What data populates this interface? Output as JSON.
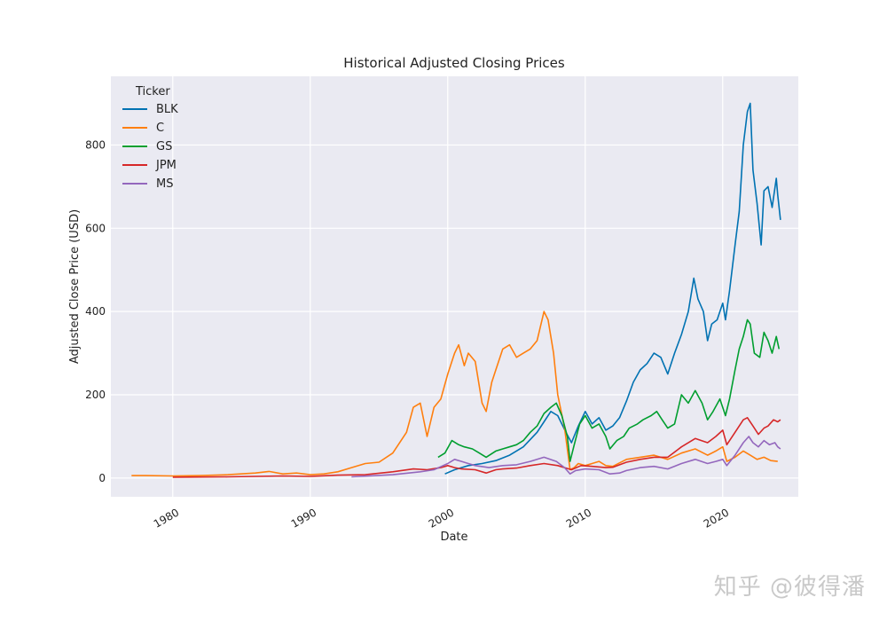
{
  "watermark": "知乎 @彼得潘",
  "chart_data": {
    "type": "line",
    "title": "Historical Adjusted Closing Prices",
    "xlabel": "Date",
    "ylabel": "Adjusted Close Price (USD)",
    "xlim": [
      1975.5,
      2025.5
    ],
    "ylim": [
      -45,
      965
    ],
    "xticks": [
      1980,
      1990,
      2000,
      2010,
      2020
    ],
    "yticks": [
      0,
      200,
      400,
      600,
      800
    ],
    "grid": true,
    "legend": {
      "title": "Ticker",
      "position": "top-left"
    },
    "series": [
      {
        "name": "BLK",
        "color": "#0072b2",
        "points": [
          [
            1999.8,
            10
          ],
          [
            2000.5,
            20
          ],
          [
            2001.5,
            30
          ],
          [
            2002.5,
            35
          ],
          [
            2003.5,
            42
          ],
          [
            2004.5,
            55
          ],
          [
            2005.5,
            75
          ],
          [
            2006.5,
            110
          ],
          [
            2007.0,
            135
          ],
          [
            2007.5,
            160
          ],
          [
            2008.0,
            150
          ],
          [
            2008.6,
            110
          ],
          [
            2009.0,
            85
          ],
          [
            2009.5,
            125
          ],
          [
            2010.0,
            160
          ],
          [
            2010.5,
            130
          ],
          [
            2011.0,
            145
          ],
          [
            2011.5,
            115
          ],
          [
            2012.0,
            125
          ],
          [
            2012.5,
            145
          ],
          [
            2013.0,
            185
          ],
          [
            2013.5,
            230
          ],
          [
            2014.0,
            260
          ],
          [
            2014.5,
            275
          ],
          [
            2015.0,
            300
          ],
          [
            2015.5,
            290
          ],
          [
            2016.0,
            250
          ],
          [
            2016.5,
            300
          ],
          [
            2017.0,
            345
          ],
          [
            2017.5,
            400
          ],
          [
            2017.9,
            480
          ],
          [
            2018.2,
            430
          ],
          [
            2018.6,
            400
          ],
          [
            2018.9,
            330
          ],
          [
            2019.2,
            370
          ],
          [
            2019.6,
            380
          ],
          [
            2020.0,
            420
          ],
          [
            2020.2,
            380
          ],
          [
            2020.5,
            450
          ],
          [
            2020.9,
            560
          ],
          [
            2021.2,
            640
          ],
          [
            2021.5,
            800
          ],
          [
            2021.8,
            880
          ],
          [
            2022.0,
            900
          ],
          [
            2022.2,
            740
          ],
          [
            2022.5,
            660
          ],
          [
            2022.8,
            560
          ],
          [
            2023.0,
            690
          ],
          [
            2023.3,
            700
          ],
          [
            2023.6,
            650
          ],
          [
            2023.9,
            720
          ],
          [
            2024.0,
            680
          ],
          [
            2024.2,
            620
          ]
        ]
      },
      {
        "name": "C",
        "color": "#ff7f0e",
        "points": [
          [
            1977.0,
            6
          ],
          [
            1978.0,
            6
          ],
          [
            1980.0,
            5
          ],
          [
            1982.0,
            6
          ],
          [
            1984.0,
            8
          ],
          [
            1986.0,
            12
          ],
          [
            1987.0,
            16
          ],
          [
            1988.0,
            10
          ],
          [
            1989.0,
            12
          ],
          [
            1990.0,
            8
          ],
          [
            1991.0,
            10
          ],
          [
            1992.0,
            15
          ],
          [
            1993.0,
            25
          ],
          [
            1994.0,
            35
          ],
          [
            1995.0,
            38
          ],
          [
            1996.0,
            60
          ],
          [
            1997.0,
            110
          ],
          [
            1997.5,
            170
          ],
          [
            1998.0,
            180
          ],
          [
            1998.5,
            100
          ],
          [
            1999.0,
            170
          ],
          [
            1999.5,
            190
          ],
          [
            2000.0,
            250
          ],
          [
            2000.5,
            300
          ],
          [
            2000.8,
            320
          ],
          [
            2001.2,
            270
          ],
          [
            2001.5,
            300
          ],
          [
            2002.0,
            280
          ],
          [
            2002.5,
            180
          ],
          [
            2002.8,
            160
          ],
          [
            2003.2,
            230
          ],
          [
            2003.5,
            260
          ],
          [
            2004.0,
            310
          ],
          [
            2004.5,
            320
          ],
          [
            2005.0,
            290
          ],
          [
            2005.5,
            300
          ],
          [
            2006.0,
            310
          ],
          [
            2006.5,
            330
          ],
          [
            2007.0,
            400
          ],
          [
            2007.3,
            380
          ],
          [
            2007.7,
            300
          ],
          [
            2008.0,
            200
          ],
          [
            2008.5,
            120
          ],
          [
            2008.9,
            20
          ],
          [
            2009.2,
            25
          ],
          [
            2009.5,
            35
          ],
          [
            2010.0,
            30
          ],
          [
            2010.5,
            35
          ],
          [
            2011.0,
            40
          ],
          [
            2011.5,
            30
          ],
          [
            2012.0,
            28
          ],
          [
            2013.0,
            45
          ],
          [
            2014.0,
            50
          ],
          [
            2015.0,
            55
          ],
          [
            2016.0,
            45
          ],
          [
            2017.0,
            60
          ],
          [
            2018.0,
            70
          ],
          [
            2018.9,
            55
          ],
          [
            2019.5,
            65
          ],
          [
            2020.0,
            75
          ],
          [
            2020.3,
            40
          ],
          [
            2020.9,
            50
          ],
          [
            2021.5,
            65
          ],
          [
            2022.0,
            55
          ],
          [
            2022.5,
            45
          ],
          [
            2023.0,
            50
          ],
          [
            2023.5,
            42
          ],
          [
            2024.0,
            40
          ]
        ]
      },
      {
        "name": "GS",
        "color": "#009e2f",
        "points": [
          [
            1999.3,
            50
          ],
          [
            1999.8,
            60
          ],
          [
            2000.3,
            90
          ],
          [
            2000.8,
            80
          ],
          [
            2001.2,
            75
          ],
          [
            2001.8,
            70
          ],
          [
            2002.3,
            60
          ],
          [
            2002.8,
            50
          ],
          [
            2003.5,
            65
          ],
          [
            2004.0,
            70
          ],
          [
            2004.5,
            75
          ],
          [
            2005.0,
            80
          ],
          [
            2005.5,
            90
          ],
          [
            2006.0,
            110
          ],
          [
            2006.5,
            125
          ],
          [
            2007.0,
            155
          ],
          [
            2007.5,
            170
          ],
          [
            2007.9,
            180
          ],
          [
            2008.3,
            150
          ],
          [
            2008.7,
            100
          ],
          [
            2008.9,
            40
          ],
          [
            2009.2,
            80
          ],
          [
            2009.6,
            130
          ],
          [
            2010.0,
            150
          ],
          [
            2010.5,
            120
          ],
          [
            2011.0,
            130
          ],
          [
            2011.5,
            100
          ],
          [
            2011.8,
            70
          ],
          [
            2012.3,
            90
          ],
          [
            2012.8,
            100
          ],
          [
            2013.2,
            120
          ],
          [
            2013.8,
            130
          ],
          [
            2014.2,
            140
          ],
          [
            2014.8,
            150
          ],
          [
            2015.2,
            160
          ],
          [
            2015.6,
            140
          ],
          [
            2016.0,
            120
          ],
          [
            2016.5,
            130
          ],
          [
            2017.0,
            200
          ],
          [
            2017.5,
            180
          ],
          [
            2018.0,
            210
          ],
          [
            2018.5,
            180
          ],
          [
            2018.9,
            140
          ],
          [
            2019.3,
            160
          ],
          [
            2019.8,
            190
          ],
          [
            2020.2,
            150
          ],
          [
            2020.5,
            190
          ],
          [
            2020.9,
            260
          ],
          [
            2021.2,
            310
          ],
          [
            2021.5,
            340
          ],
          [
            2021.8,
            380
          ],
          [
            2022.0,
            370
          ],
          [
            2022.3,
            300
          ],
          [
            2022.7,
            290
          ],
          [
            2023.0,
            350
          ],
          [
            2023.3,
            330
          ],
          [
            2023.6,
            300
          ],
          [
            2023.9,
            340
          ],
          [
            2024.1,
            310
          ]
        ]
      },
      {
        "name": "JPM",
        "color": "#d62728",
        "points": [
          [
            1980.0,
            2
          ],
          [
            1984.0,
            3
          ],
          [
            1988.0,
            5
          ],
          [
            1990.0,
            4
          ],
          [
            1992.0,
            7
          ],
          [
            1994.0,
            8
          ],
          [
            1996.0,
            15
          ],
          [
            1997.5,
            22
          ],
          [
            1998.5,
            20
          ],
          [
            1999.5,
            25
          ],
          [
            2000.0,
            30
          ],
          [
            2000.5,
            25
          ],
          [
            2001.0,
            22
          ],
          [
            2002.0,
            20
          ],
          [
            2002.8,
            12
          ],
          [
            2003.5,
            20
          ],
          [
            2004.0,
            22
          ],
          [
            2005.0,
            24
          ],
          [
            2006.0,
            30
          ],
          [
            2007.0,
            35
          ],
          [
            2008.0,
            30
          ],
          [
            2009.0,
            20
          ],
          [
            2009.7,
            30
          ],
          [
            2010.5,
            28
          ],
          [
            2011.5,
            25
          ],
          [
            2012.0,
            26
          ],
          [
            2013.0,
            38
          ],
          [
            2014.0,
            45
          ],
          [
            2015.0,
            50
          ],
          [
            2016.0,
            50
          ],
          [
            2017.0,
            75
          ],
          [
            2018.0,
            95
          ],
          [
            2018.9,
            85
          ],
          [
            2019.5,
            100
          ],
          [
            2020.0,
            115
          ],
          [
            2020.3,
            80
          ],
          [
            2020.9,
            110
          ],
          [
            2021.5,
            140
          ],
          [
            2021.8,
            145
          ],
          [
            2022.2,
            125
          ],
          [
            2022.6,
            105
          ],
          [
            2023.0,
            120
          ],
          [
            2023.3,
            125
          ],
          [
            2023.7,
            140
          ],
          [
            2024.0,
            135
          ],
          [
            2024.2,
            140
          ]
        ]
      },
      {
        "name": "MS",
        "color": "#9467bd",
        "points": [
          [
            1993.0,
            3
          ],
          [
            1996.0,
            8
          ],
          [
            1998.0,
            15
          ],
          [
            1999.0,
            20
          ],
          [
            2000.0,
            35
          ],
          [
            2000.5,
            45
          ],
          [
            2001.0,
            40
          ],
          [
            2001.5,
            35
          ],
          [
            2002.0,
            30
          ],
          [
            2003.0,
            25
          ],
          [
            2004.0,
            30
          ],
          [
            2005.0,
            32
          ],
          [
            2006.0,
            40
          ],
          [
            2007.0,
            50
          ],
          [
            2007.9,
            40
          ],
          [
            2008.5,
            25
          ],
          [
            2008.9,
            10
          ],
          [
            2009.3,
            18
          ],
          [
            2010.0,
            22
          ],
          [
            2011.0,
            20
          ],
          [
            2011.8,
            10
          ],
          [
            2012.5,
            12
          ],
          [
            2013.0,
            18
          ],
          [
            2014.0,
            25
          ],
          [
            2015.0,
            28
          ],
          [
            2016.0,
            22
          ],
          [
            2017.0,
            35
          ],
          [
            2018.0,
            45
          ],
          [
            2018.9,
            35
          ],
          [
            2019.5,
            40
          ],
          [
            2020.0,
            45
          ],
          [
            2020.3,
            30
          ],
          [
            2020.9,
            55
          ],
          [
            2021.5,
            85
          ],
          [
            2021.9,
            100
          ],
          [
            2022.2,
            85
          ],
          [
            2022.6,
            75
          ],
          [
            2023.0,
            90
          ],
          [
            2023.4,
            80
          ],
          [
            2023.8,
            85
          ],
          [
            2024.0,
            75
          ],
          [
            2024.2,
            70
          ]
        ]
      }
    ]
  }
}
